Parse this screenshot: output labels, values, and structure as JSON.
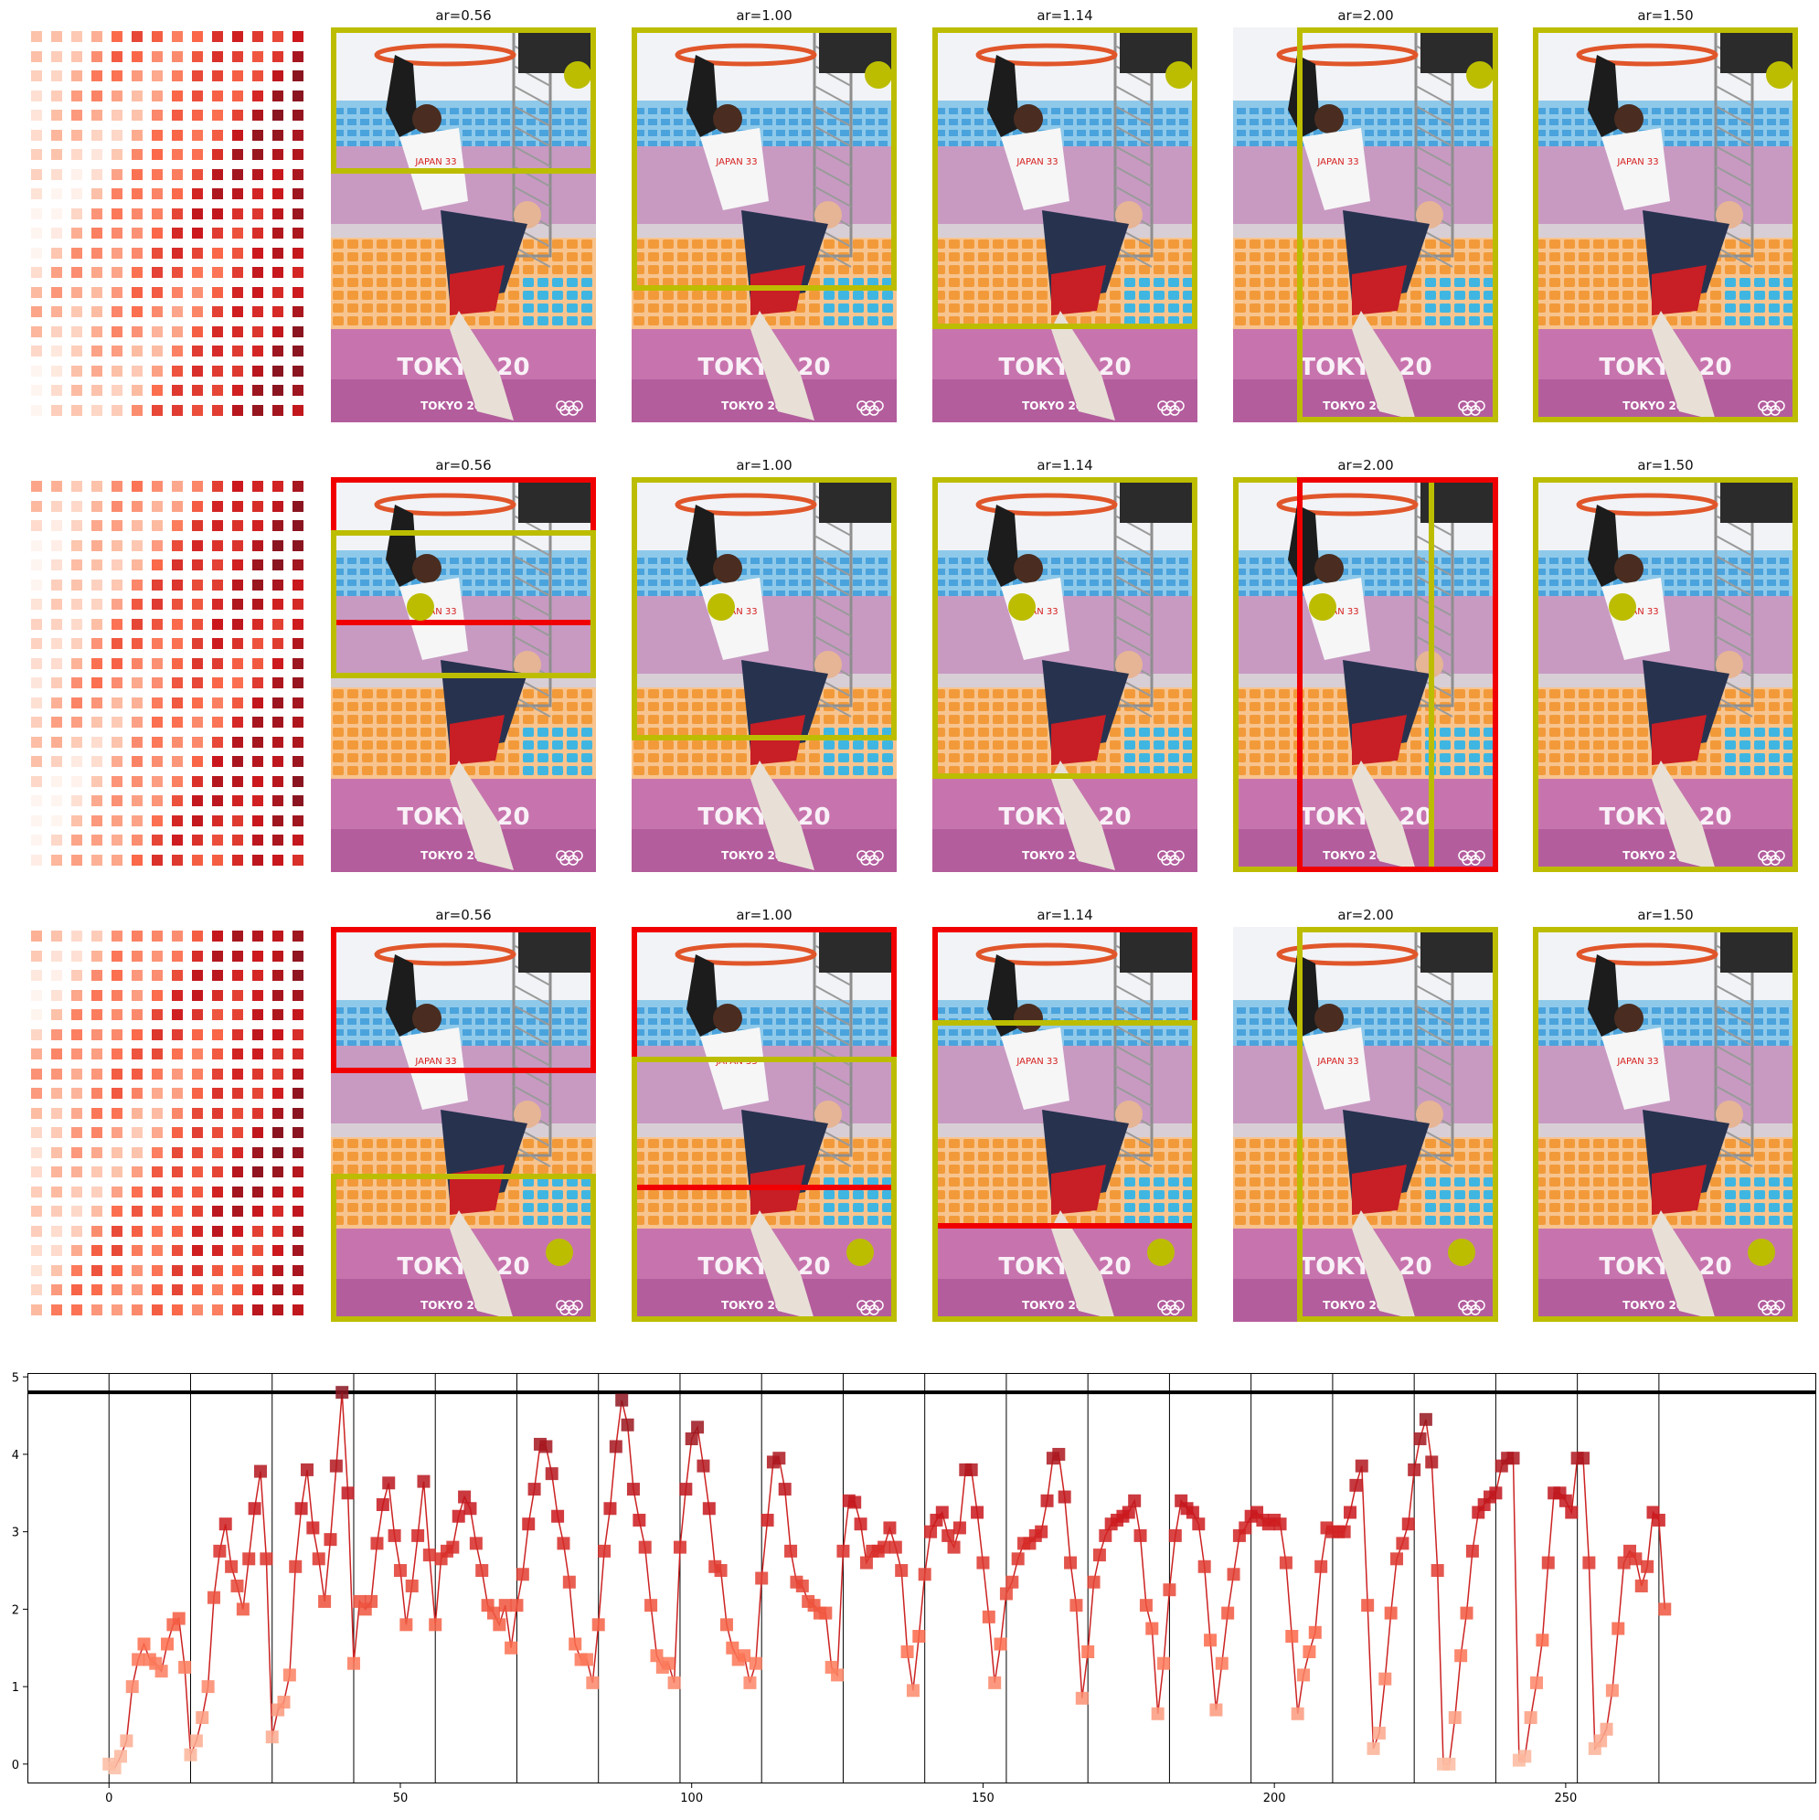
{
  "colors": {
    "kept_box": "#bcbd00",
    "rejected_box": "#f00000",
    "line": "#cc2222",
    "heat_scale": [
      "#fff5f0",
      "#fcbba1",
      "#fb6a4a",
      "#cb181d",
      "#8a1520"
    ]
  },
  "panel_rows": [
    {
      "heatmap_name": "heatmap-row-1",
      "panels": [
        {
          "title": "ar=0.56",
          "dot": true
        },
        {
          "title": "ar=1.00",
          "dot": true
        },
        {
          "title": "ar=1.14",
          "dot": true
        },
        {
          "title": "ar=2.00",
          "dot": true
        },
        {
          "title": "ar=1.50",
          "dot": true
        }
      ]
    },
    {
      "heatmap_name": "heatmap-row-2",
      "panels": [
        {
          "title": "ar=0.56",
          "dot": true
        },
        {
          "title": "ar=1.00",
          "dot": true
        },
        {
          "title": "ar=1.14",
          "dot": true
        },
        {
          "title": "ar=2.00",
          "dot": true
        },
        {
          "title": "ar=1.50",
          "dot": true
        }
      ]
    },
    {
      "heatmap_name": "heatmap-row-3",
      "panels": [
        {
          "title": "ar=0.56",
          "dot": true
        },
        {
          "title": "ar=1.00",
          "dot": true
        },
        {
          "title": "ar=1.14",
          "dot": true
        },
        {
          "title": "ar=2.00",
          "dot": true
        },
        {
          "title": "ar=1.50",
          "dot": true
        }
      ]
    }
  ],
  "photo_text": {
    "sign_top": "TOKYO 2020",
    "sign_mid": "TOKYO 20",
    "jersey": "JAPAN 33"
  },
  "chart_data": {
    "type": "line",
    "xlim": [
      -14,
      293
    ],
    "ylim": [
      -0.25,
      5.05
    ],
    "xticks": [
      0,
      50,
      100,
      150,
      200,
      250
    ],
    "yticks": [
      0,
      1,
      2,
      3,
      4,
      5
    ],
    "horizontal_line": 4.8,
    "vertical_lines": [
      0,
      14,
      28,
      42,
      56,
      70,
      84,
      98,
      112,
      126,
      140,
      154,
      168,
      182,
      196,
      210,
      224,
      238,
      252,
      266
    ],
    "grid": false,
    "markers": "square",
    "series": [
      {
        "y": [
          0.0,
          -0.05,
          0.1,
          0.3,
          1.0,
          1.35,
          1.55,
          1.35,
          1.3,
          1.2,
          1.55,
          1.8,
          1.88,
          1.25,
          0.12,
          0.3,
          0.6,
          1.0,
          2.15,
          2.75,
          3.1,
          2.55,
          2.3,
          2.0,
          2.65,
          3.3,
          3.78,
          2.65,
          0.35,
          0.7,
          0.8,
          1.15,
          2.55,
          3.3,
          3.8,
          3.05,
          2.65,
          2.1,
          2.9,
          3.85,
          4.8,
          3.5,
          1.3,
          2.1,
          2.0,
          2.1,
          2.85,
          3.35,
          3.63,
          2.95,
          2.5,
          1.8,
          2.3,
          2.95,
          3.65,
          2.7,
          1.8,
          2.65,
          2.75,
          2.8,
          3.2,
          3.45,
          3.3,
          2.85,
          2.5,
          2.05,
          1.95,
          1.8,
          2.05,
          1.5,
          2.05,
          2.45,
          3.1,
          3.55,
          4.13,
          4.1,
          3.75,
          3.2,
          2.85,
          2.35,
          1.55,
          1.35,
          1.35,
          1.05,
          1.8,
          2.75,
          3.3,
          4.1,
          4.7,
          4.38,
          3.55,
          3.15,
          2.8,
          2.05,
          1.4,
          1.25,
          1.3,
          1.05,
          2.8,
          3.55,
          4.2,
          4.35,
          3.85,
          3.3,
          2.55,
          2.5,
          1.8,
          1.5,
          1.35,
          1.4,
          1.05,
          1.3,
          2.4,
          3.15,
          3.9,
          3.95,
          3.55,
          2.75,
          2.35,
          2.3,
          2.1,
          2.05,
          1.95,
          1.95,
          1.25,
          1.15,
          2.75,
          3.4,
          3.38,
          3.1,
          2.6,
          2.75,
          2.75,
          2.8,
          3.05,
          2.8,
          2.5,
          1.45,
          0.95,
          1.65,
          2.45,
          3.0,
          3.15,
          3.25,
          2.95,
          2.8,
          3.05,
          3.8,
          3.8,
          3.25,
          2.6,
          1.9,
          1.05,
          1.55,
          2.2,
          2.35,
          2.65,
          2.85,
          2.85,
          2.95,
          3.0,
          3.4,
          3.95,
          4.0,
          3.45,
          2.6,
          2.05,
          0.85,
          1.45,
          2.35,
          2.7,
          2.95,
          3.1,
          3.15,
          3.2,
          3.25,
          3.4,
          2.95,
          2.05,
          1.75,
          0.65,
          1.3,
          2.25,
          2.95,
          3.4,
          3.3,
          3.25,
          3.1,
          2.55,
          1.6,
          0.7,
          1.3,
          1.95,
          2.45,
          2.95,
          3.05,
          3.2,
          3.25,
          3.15,
          3.1,
          3.15,
          3.1,
          2.6,
          1.65,
          0.65,
          1.15,
          1.45,
          1.7,
          2.55,
          3.05,
          3.0,
          3.0,
          3.0,
          3.25,
          3.6,
          3.85,
          2.05,
          0.2,
          0.4,
          1.1,
          1.95,
          2.65,
          2.85,
          3.1,
          3.8,
          4.2,
          4.45,
          3.9,
          2.5,
          0.0,
          0.0,
          0.6,
          1.4,
          1.95,
          2.75,
          3.25,
          3.35,
          3.45,
          3.5,
          3.85,
          3.95,
          3.95,
          0.05,
          0.1,
          0.6,
          1.05,
          1.6,
          2.6,
          3.5,
          3.5,
          3.4,
          3.25,
          3.95,
          3.95,
          2.6,
          0.2,
          0.3,
          0.45,
          0.95,
          1.75,
          2.6,
          2.75,
          2.65,
          2.3,
          2.55,
          3.25,
          3.15,
          2.0
        ]
      }
    ]
  }
}
